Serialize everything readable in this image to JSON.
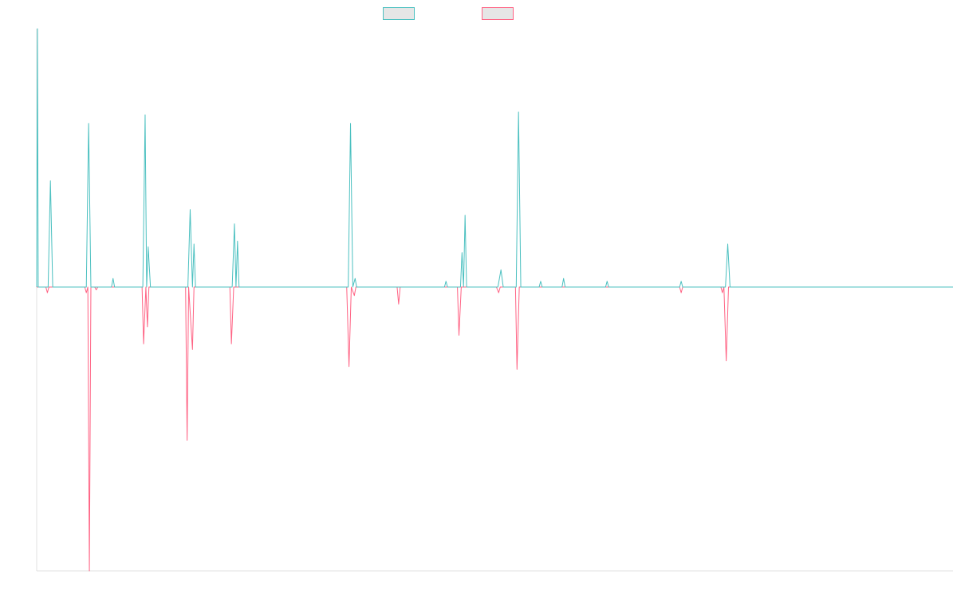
{
  "chart_data": {
    "type": "line",
    "title": "",
    "xlabel": "",
    "ylabel": "",
    "grid": false,
    "legend_position": "top-center",
    "xlim": [
      0,
      1200
    ],
    "ylim": [
      -100,
      90
    ],
    "colors": {
      "series_a": "#4bc0c0",
      "series_b": "#ff6384",
      "axis": "#e0e0e0",
      "legend_fill": "#e6e6e6"
    },
    "series": [
      {
        "name": "",
        "color": "#4bc0c0",
        "points": [
          [
            0,
            0
          ],
          [
            1,
            90
          ],
          [
            2,
            0
          ],
          [
            15,
            0
          ],
          [
            18,
            37
          ],
          [
            21,
            0
          ],
          [
            65,
            0
          ],
          [
            68,
            57
          ],
          [
            71,
            0
          ],
          [
            98,
            0
          ],
          [
            100,
            3
          ],
          [
            102,
            0
          ],
          [
            139,
            0
          ],
          [
            142,
            60
          ],
          [
            144,
            0
          ],
          [
            146,
            14
          ],
          [
            149,
            0
          ],
          [
            198,
            0
          ],
          [
            201,
            27
          ],
          [
            204,
            0
          ],
          [
            206,
            15
          ],
          [
            208,
            0
          ],
          [
            256,
            0
          ],
          [
            259,
            22
          ],
          [
            261,
            0
          ],
          [
            263,
            16
          ],
          [
            265,
            0
          ],
          [
            408,
            0
          ],
          [
            411,
            57
          ],
          [
            414,
            0
          ],
          [
            417,
            3
          ],
          [
            419,
            0
          ],
          [
            534,
            0
          ],
          [
            536,
            2
          ],
          [
            538,
            0
          ],
          [
            555,
            0
          ],
          [
            557,
            12
          ],
          [
            559,
            0
          ],
          [
            561,
            25
          ],
          [
            563,
            0
          ],
          [
            604,
            0
          ],
          [
            608,
            6
          ],
          [
            611,
            0
          ],
          [
            628,
            0
          ],
          [
            631,
            61
          ],
          [
            634,
            0
          ],
          [
            658,
            0
          ],
          [
            660,
            2
          ],
          [
            662,
            0
          ],
          [
            688,
            0
          ],
          [
            690,
            3
          ],
          [
            692,
            0
          ],
          [
            745,
            0
          ],
          [
            747,
            2
          ],
          [
            749,
            0
          ],
          [
            842,
            0
          ],
          [
            844,
            2
          ],
          [
            846,
            0
          ],
          [
            902,
            0
          ],
          [
            905,
            15
          ],
          [
            908,
            0
          ],
          [
            1200,
            0
          ]
        ]
      },
      {
        "name": "",
        "color": "#ff6384",
        "points": [
          [
            0,
            0
          ],
          [
            12,
            0
          ],
          [
            14,
            -2
          ],
          [
            16,
            0
          ],
          [
            63,
            0
          ],
          [
            65,
            -2
          ],
          [
            67,
            0
          ],
          [
            69,
            -100
          ],
          [
            71,
            0
          ],
          [
            76,
            0
          ],
          [
            78,
            -1
          ],
          [
            80,
            0
          ],
          [
            138,
            0
          ],
          [
            140,
            -20
          ],
          [
            143,
            0
          ],
          [
            145,
            -14
          ],
          [
            147,
            0
          ],
          [
            195,
            0
          ],
          [
            197,
            -54
          ],
          [
            199,
            0
          ],
          [
            204,
            -22
          ],
          [
            206,
            0
          ],
          [
            253,
            0
          ],
          [
            255,
            -20
          ],
          [
            258,
            0
          ],
          [
            406,
            0
          ],
          [
            409,
            -28
          ],
          [
            412,
            0
          ],
          [
            416,
            -3
          ],
          [
            418,
            0
          ],
          [
            472,
            0
          ],
          [
            474,
            -6
          ],
          [
            476,
            0
          ],
          [
            551,
            0
          ],
          [
            553,
            -17
          ],
          [
            556,
            0
          ],
          [
            602,
            0
          ],
          [
            605,
            -2
          ],
          [
            607,
            0
          ],
          [
            627,
            0
          ],
          [
            629,
            -29
          ],
          [
            632,
            0
          ],
          [
            842,
            0
          ],
          [
            844,
            -2
          ],
          [
            846,
            0
          ],
          [
            896,
            0
          ],
          [
            898,
            -2
          ],
          [
            900,
            0
          ],
          [
            903,
            -26
          ],
          [
            906,
            0
          ],
          [
            1200,
            0
          ]
        ]
      }
    ]
  }
}
